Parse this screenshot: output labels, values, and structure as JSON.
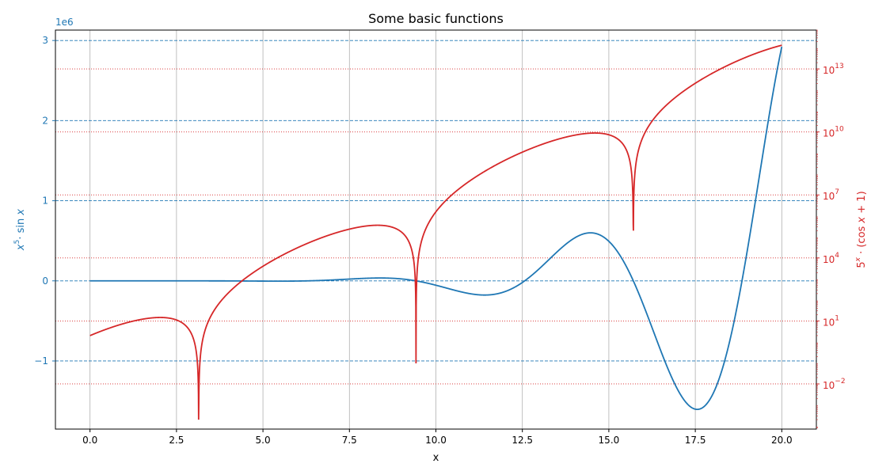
{
  "chart_data": {
    "type": "line",
    "title": "Some basic functions",
    "xlabel": "x",
    "x_range": [
      0,
      20
    ],
    "xlim": [
      -1,
      21
    ],
    "x_ticks": [
      0,
      2.5,
      5,
      7.5,
      10,
      12.5,
      15,
      17.5,
      20
    ],
    "x_tick_labels": [
      "0.0",
      "2.5",
      "5.0",
      "7.5",
      "10.0",
      "12.5",
      "15.0",
      "17.5",
      "20.0"
    ],
    "grid": true,
    "legend": "none",
    "left_axis": {
      "ylabel": "x^5 · sin x",
      "ylabel_parts": [
        "x",
        "5",
        "· sin ",
        "x"
      ],
      "offset_text": "1e6",
      "scale": "linear",
      "ylim": [
        -1.85,
        3.13
      ],
      "ticks": [
        -1,
        0,
        1,
        2,
        3
      ],
      "tick_labels": [
        "−1",
        "0",
        "1",
        "2",
        "3"
      ],
      "color": "#1f77b4"
    },
    "right_axis": {
      "ylabel": "5^x · (cos x + 1)",
      "ylabel_parts": [
        "5",
        "x",
        " · (cos ",
        "x",
        " + 1)"
      ],
      "scale": "log",
      "ylim_log10": [
        -4.15,
        14.85
      ],
      "ticks_log10": [
        -2,
        1,
        4,
        7,
        10,
        13
      ],
      "tick_labels": [
        {
          "base": "10",
          "exp": "−2"
        },
        {
          "base": "10",
          "exp": "1"
        },
        {
          "base": "10",
          "exp": "4"
        },
        {
          "base": "10",
          "exp": "7"
        },
        {
          "base": "10",
          "exp": "10"
        },
        {
          "base": "10",
          "exp": "13"
        }
      ],
      "color": "#d62728"
    },
    "series": [
      {
        "formula": "x^5 · sin x",
        "axis": "left",
        "color": "#1f77b4",
        "line_style": "solid"
      },
      {
        "formula": "5^x · (cos x + 1)",
        "axis": "right",
        "color": "#d62728",
        "line_style": "solid"
      }
    ]
  }
}
